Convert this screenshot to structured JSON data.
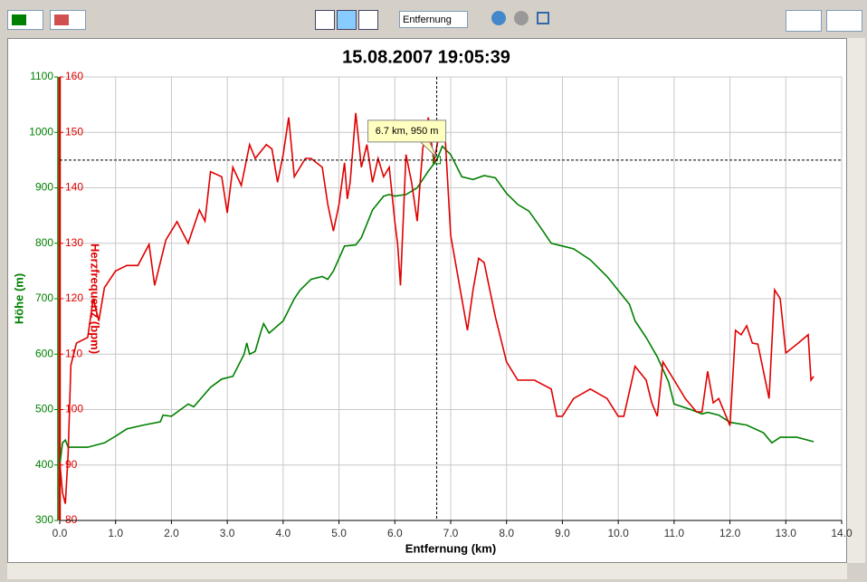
{
  "toolbar": {
    "dropdown": "Entfernung"
  },
  "chart_data": {
    "type": "line",
    "title": "15.08.2007 19:05:39",
    "xlabel": "Entfernung (km)",
    "ylabel": "Höhe (m)",
    "y2label": "Herzfrequenz (bpm)",
    "annotation": "6.7 km, 950 m",
    "crosshair": {
      "x": 6.75,
      "y": 950
    },
    "grid": true,
    "xlim": [
      0,
      14
    ],
    "xticks": [
      {
        "value": 0,
        "label": "0.0"
      },
      {
        "value": 1,
        "label": "1.0"
      },
      {
        "value": 2,
        "label": "2.0"
      },
      {
        "value": 3,
        "label": "3.0"
      },
      {
        "value": 4,
        "label": "4.0"
      },
      {
        "value": 5,
        "label": "5.0"
      },
      {
        "value": 6,
        "label": "6.0"
      },
      {
        "value": 7,
        "label": "7.0"
      },
      {
        "value": 8,
        "label": "8.0"
      },
      {
        "value": 9,
        "label": "9.0"
      },
      {
        "value": 10,
        "label": "10.0"
      },
      {
        "value": 11,
        "label": "11.0"
      },
      {
        "value": 12,
        "label": "12.0"
      },
      {
        "value": 13,
        "label": "13.0"
      },
      {
        "value": 14,
        "label": "14.0"
      }
    ],
    "ylim": [
      300,
      1100
    ],
    "yticks": [
      300,
      400,
      500,
      600,
      700,
      800,
      900,
      1000,
      1100
    ],
    "y2lim": [
      80,
      160
    ],
    "y2ticks": [
      80,
      90,
      100,
      110,
      120,
      130,
      140,
      150,
      160
    ],
    "ycolor": "#008000",
    "y2color": "#e00000",
    "series": [
      {
        "color": "#008000",
        "x": [
          0,
          0.05,
          0.1,
          0.15,
          0.5,
          0.8,
          1.0,
          1.2,
          1.5,
          1.8,
          1.85,
          2.0,
          2.3,
          2.4,
          2.7,
          2.9,
          3.1,
          3.3,
          3.35,
          3.4,
          3.5,
          3.6,
          3.65,
          3.75,
          4.0,
          4.2,
          4.3,
          4.5,
          4.7,
          4.8,
          4.9,
          5.1,
          5.3,
          5.4,
          5.6,
          5.8,
          5.9,
          6.0,
          6.2,
          6.4,
          6.6,
          6.75,
          6.85,
          7.0,
          7.2,
          7.4,
          7.6,
          7.8,
          8.0,
          8.2,
          8.4,
          8.6,
          8.8,
          9.0,
          9.2,
          9.5,
          9.8,
          10.0,
          10.2,
          10.3,
          10.5,
          10.7,
          10.9,
          11.0,
          11.3,
          11.5,
          11.6,
          11.8,
          12.0,
          12.3,
          12.6,
          12.75,
          12.9,
          13.2,
          13.5
        ],
        "values": [
          400,
          440,
          445,
          432,
          432,
          440,
          452,
          465,
          472,
          478,
          490,
          488,
          510,
          505,
          540,
          555,
          560,
          600,
          620,
          600,
          605,
          640,
          655,
          638,
          660,
          700,
          715,
          735,
          740,
          735,
          750,
          795,
          797,
          810,
          860,
          885,
          888,
          885,
          888,
          900,
          930,
          950,
          975,
          960,
          920,
          915,
          922,
          918,
          890,
          870,
          858,
          830,
          800,
          795,
          790,
          770,
          740,
          715,
          690,
          660,
          630,
          595,
          550,
          510,
          500,
          492,
          495,
          490,
          477,
          472,
          458,
          440,
          450,
          450,
          442
        ]
      },
      {
        "color": "#e00000",
        "axis": "y2",
        "x": [
          0,
          0.05,
          0.1,
          0.15,
          0.2,
          0.3,
          0.5,
          0.6,
          0.7,
          0.8,
          1.0,
          1.2,
          1.4,
          1.6,
          1.7,
          1.9,
          2.1,
          2.3,
          2.5,
          2.6,
          2.7,
          2.9,
          3.0,
          3.1,
          3.25,
          3.4,
          3.5,
          3.7,
          3.8,
          3.9,
          4.0,
          4.1,
          4.2,
          4.4,
          4.5,
          4.7,
          4.8,
          4.9,
          5.0,
          5.1,
          5.15,
          5.2,
          5.3,
          5.4,
          5.5,
          5.6,
          5.7,
          5.8,
          5.9,
          6.0,
          6.05,
          6.1,
          6.2,
          6.3,
          6.4,
          6.5,
          6.6,
          6.7,
          6.8,
          6.9,
          7.0,
          7.2,
          7.3,
          7.4,
          7.5,
          7.6,
          7.8,
          8.0,
          8.2,
          8.5,
          8.8,
          8.9,
          9.0,
          9.2,
          9.5,
          9.8,
          10.0,
          10.1,
          10.3,
          10.5,
          10.6,
          10.7,
          10.8,
          11.0,
          11.2,
          11.4,
          11.5,
          11.6,
          11.7,
          11.8,
          12.0,
          12.1,
          12.2,
          12.3,
          12.4,
          12.5,
          12.6,
          12.7,
          12.8,
          12.9,
          13.0,
          13.2,
          13.4,
          13.45,
          13.5
        ],
        "values": [
          90.6,
          85,
          83,
          92,
          108,
          112,
          113,
          120,
          116,
          122,
          125,
          126,
          126,
          129.8,
          122.4,
          130.6,
          133.9,
          130,
          136,
          134,
          142.9,
          142,
          135.5,
          143.7,
          140.4,
          147.8,
          145.3,
          147.8,
          147,
          141,
          146,
          152.7,
          142,
          145.3,
          145.3,
          143.7,
          137,
          132.2,
          137,
          144.5,
          138,
          141,
          153.5,
          143.7,
          147.8,
          141,
          145.3,
          142,
          143.7,
          133.9,
          129.8,
          122.4,
          146,
          141,
          134,
          147,
          152.7,
          144.5,
          150.2,
          149.4,
          131.4,
          120,
          114.3,
          121.6,
          127.3,
          126.5,
          116.7,
          108.6,
          105.3,
          105.3,
          103.7,
          98.8,
          98.8,
          102,
          103.7,
          102,
          98.8,
          98.8,
          107.8,
          105.3,
          101.2,
          98.8,
          108.6,
          105.3,
          102,
          99.6,
          99.6,
          106.9,
          101.2,
          102,
          97.1,
          114.3,
          113.5,
          115.1,
          112,
          111.8,
          106.9,
          102,
          121.6,
          120,
          110.2,
          111.8,
          113.5,
          105.3,
          106
        ]
      }
    ]
  }
}
